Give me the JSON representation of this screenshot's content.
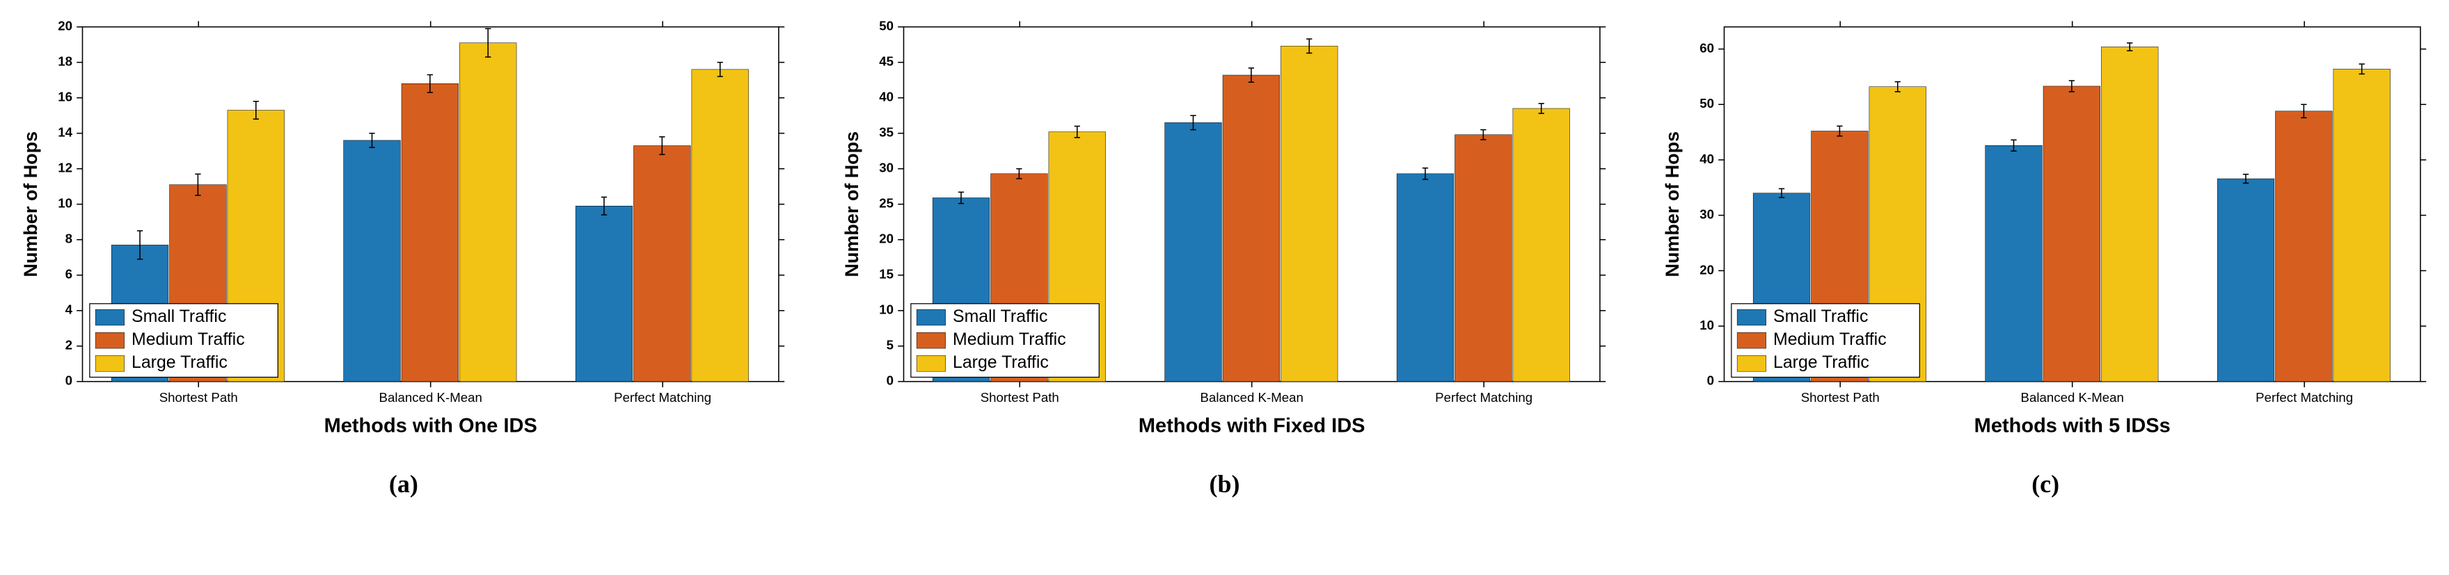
{
  "global": {
    "font_family": "Arial, Helvetica, sans-serif",
    "subcaption_font_family": "Times New Roman, serif",
    "background_color": "#ffffff",
    "axis_color": "#000000",
    "tick_fontsize": 18,
    "ylabel_fontsize": 26,
    "xlabel_fontsize": 28,
    "legend_fontsize": 24,
    "subcaption_fontsize": 36,
    "bar_group_width": 0.75,
    "bar_gap_inner": 0.0,
    "series_colors": {
      "small": "#1f77b4",
      "medium": "#d65f1f",
      "large": "#f2c315"
    },
    "error_bar_color": "#000000",
    "error_bar_width": 1.5,
    "error_cap_halfwidth": 4,
    "box_linewidth": 1.5
  },
  "panels": [
    {
      "id": "a",
      "subcaption": "(a)",
      "xlabel": "Methods with One IDS",
      "ylabel": "Number of Hops",
      "categories": [
        "Shortest Path",
        "Balanced K-Mean",
        "Perfect Matching"
      ],
      "ylim": [
        0,
        20
      ],
      "ytick_step": 2,
      "legend": {
        "labels": [
          "Small Traffic",
          "Medium Traffic",
          "Large Traffic"
        ],
        "position": "lower-left",
        "bg": "#ffffff",
        "border": "#000000"
      },
      "series": [
        {
          "name": "Small Traffic",
          "color_key": "small",
          "values": [
            7.7,
            13.6,
            9.9
          ],
          "errors": [
            0.8,
            0.4,
            0.5
          ]
        },
        {
          "name": "Medium Traffic",
          "color_key": "medium",
          "values": [
            11.1,
            16.8,
            13.3
          ],
          "errors": [
            0.6,
            0.5,
            0.5
          ]
        },
        {
          "name": "Large Traffic",
          "color_key": "large",
          "values": [
            15.3,
            19.1,
            17.6
          ],
          "errors": [
            0.5,
            0.8,
            0.4
          ]
        }
      ]
    },
    {
      "id": "b",
      "subcaption": "(b)",
      "xlabel": "Methods with Fixed IDS",
      "ylabel": "Number of Hops",
      "categories": [
        "Shortest Path",
        "Balanced K-Mean",
        "Perfect Matching"
      ],
      "ylim": [
        0,
        50
      ],
      "ytick_step": 5,
      "legend": {
        "labels": [
          "Small Traffic",
          "Medium Traffic",
          "Large Traffic"
        ],
        "position": "lower-left",
        "bg": "#ffffff",
        "border": "#000000"
      },
      "series": [
        {
          "name": "Small Traffic",
          "color_key": "small",
          "values": [
            25.9,
            36.5,
            29.3
          ],
          "errors": [
            0.8,
            1.0,
            0.8
          ]
        },
        {
          "name": "Medium Traffic",
          "color_key": "medium",
          "values": [
            29.3,
            43.2,
            34.8
          ],
          "errors": [
            0.7,
            1.0,
            0.7
          ]
        },
        {
          "name": "Large Traffic",
          "color_key": "large",
          "values": [
            35.2,
            47.3,
            38.5
          ],
          "errors": [
            0.8,
            1.0,
            0.7
          ]
        }
      ]
    },
    {
      "id": "c",
      "subcaption": "(c)",
      "xlabel": "Methods with 5 IDSs",
      "ylabel": "Number of Hops",
      "categories": [
        "Shortest Path",
        "Balanced K-Mean",
        "Perfect Matching"
      ],
      "ylim": [
        0,
        64
      ],
      "ytick_step": 10,
      "ytick_start": 0,
      "legend": {
        "labels": [
          "Small Traffic",
          "Medium Traffic",
          "Large Traffic"
        ],
        "position": "lower-left",
        "bg": "#ffffff",
        "border": "#000000"
      },
      "series": [
        {
          "name": "Small Traffic",
          "color_key": "small",
          "values": [
            34.0,
            42.6,
            36.6
          ],
          "errors": [
            0.8,
            1.0,
            0.8
          ]
        },
        {
          "name": "Medium Traffic",
          "color_key": "medium",
          "values": [
            45.2,
            53.3,
            48.8
          ],
          "errors": [
            0.9,
            1.0,
            1.2
          ]
        },
        {
          "name": "Large Traffic",
          "color_key": "large",
          "values": [
            53.2,
            60.4,
            56.4
          ],
          "errors": [
            0.9,
            0.7,
            0.9
          ]
        }
      ]
    }
  ]
}
